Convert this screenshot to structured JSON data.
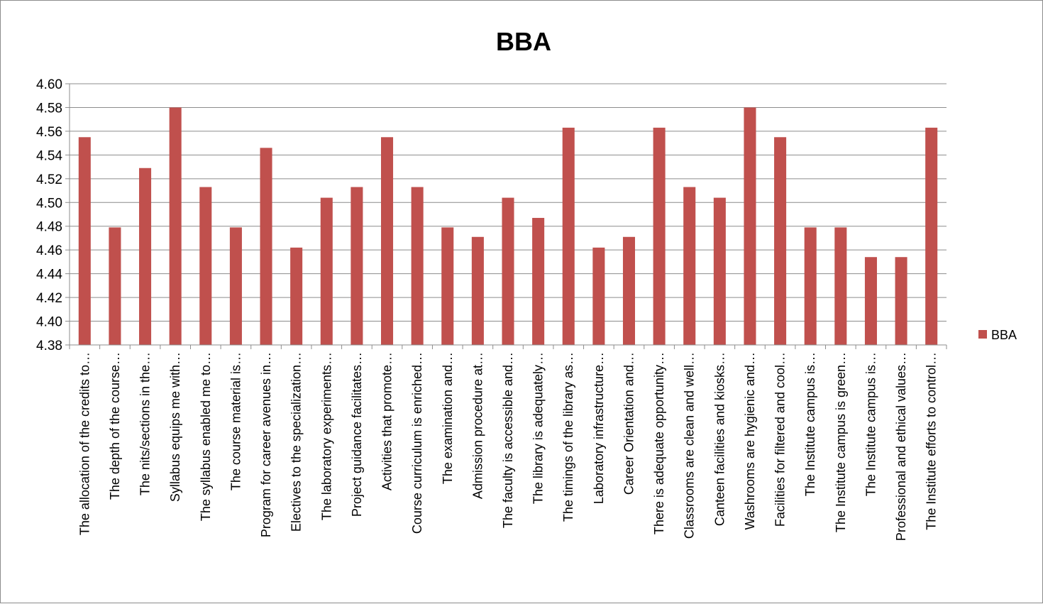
{
  "chart_data": {
    "type": "bar",
    "title": "BBA",
    "xlabel": "",
    "ylabel": "",
    "ylim": [
      4.38,
      4.6
    ],
    "yticks": [
      "4.38",
      "4.40",
      "4.42",
      "4.44",
      "4.46",
      "4.48",
      "4.50",
      "4.52",
      "4.54",
      "4.56",
      "4.58",
      "4.60"
    ],
    "grid": true,
    "legend": "right",
    "bar_color": "#c0504d",
    "categories": [
      "The allocation of the credits to…",
      "The depth of the course…",
      "The nits/sections in the…",
      "Syllabus equips me with…",
      "The syllabus enabled me to…",
      "The course material is…",
      "Program for career avenues in…",
      "Electives to the specialization…",
      "The laboratory experiments…",
      "Project guidance facilitates…",
      "Activities that promote…",
      "Course curriculum is enriched…",
      "The examination and…",
      "Admission procedure at…",
      "The faculty is accessible and…",
      "The library is adequately…",
      "The timings of the library as…",
      "Laboratory infrastructure…",
      "Career Orientation and…",
      "There is adequate opportunity…",
      "Classrooms are clean and well…",
      "Canteen facilities and kiosks…",
      "Washrooms are hygienic and…",
      "Facilities for filtered and cool…",
      "The Institute campus is…",
      "The Institute campus is green…",
      "The Institute campus is…",
      "Professional and ethical values…",
      "The Institute efforts to control…"
    ],
    "series": [
      {
        "name": "BBA",
        "values": [
          4.555,
          4.479,
          4.529,
          4.58,
          4.513,
          4.479,
          4.546,
          4.462,
          4.504,
          4.513,
          4.555,
          4.513,
          4.479,
          4.471,
          4.504,
          4.487,
          4.563,
          4.462,
          4.471,
          4.563,
          4.513,
          4.504,
          4.58,
          4.555,
          4.479,
          4.479,
          4.454,
          4.454,
          4.563
        ]
      }
    ]
  }
}
